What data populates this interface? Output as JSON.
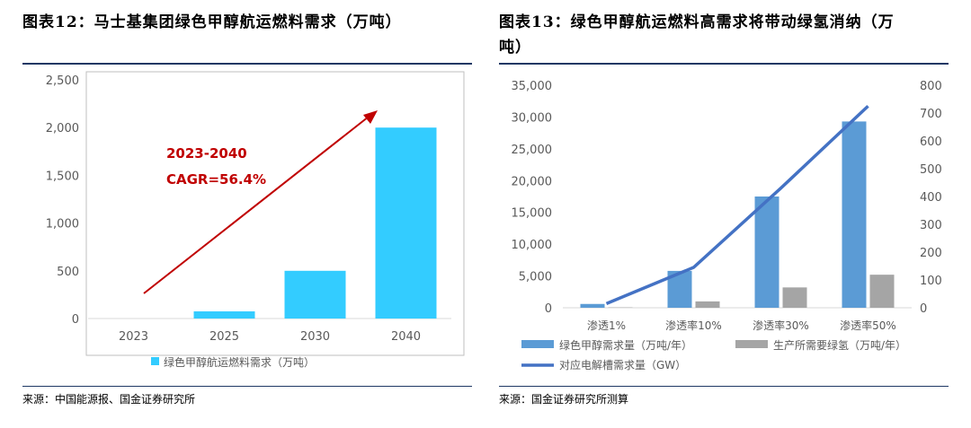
{
  "left": {
    "title": "图表12：马士基集团绿色甲醇航运燃料需求（万吨）",
    "source": "来源：中国能源报、国金证券研究所",
    "annotation_line1": "2023-2040",
    "annotation_line2": "CAGR=56.4%",
    "colors": {
      "bar": "#33ccff",
      "arrow": "#c00000",
      "frame": "#bfbfbf"
    }
  },
  "right": {
    "title_line1": "图表13：绿色甲醇航运燃料高需求将带动绿氢消纳（万",
    "title_line2": "吨）",
    "source": "来源：国金证券研究所测算",
    "colors": {
      "bar1": "#5b9bd5",
      "bar2": "#a5a5a5",
      "line": "#4472c4"
    }
  },
  "chart_data": [
    {
      "type": "bar",
      "categories": [
        "2023",
        "2025",
        "2030",
        "2040"
      ],
      "series": [
        {
          "name": "绿色甲醇航运燃料需求（万吨）",
          "values": [
            0,
            75,
            500,
            2000
          ]
        }
      ],
      "ylim": [
        0,
        2500
      ],
      "yticks": [
        "0",
        "500",
        "1,000",
        "1,500",
        "2,000",
        "2,500"
      ],
      "grid": false,
      "legend": "bottom"
    },
    {
      "type": "bar",
      "categories": [
        "渗透1%",
        "渗透率10%",
        "渗透率30%",
        "渗透率50%"
      ],
      "series": [
        {
          "name": "绿色甲醇需求量（万吨/年）",
          "axis": "left",
          "values": [
            600,
            5800,
            17500,
            29300
          ]
        },
        {
          "name": "生产所需要绿氢（万吨/年）",
          "axis": "left",
          "values": [
            60,
            1000,
            3200,
            5200
          ]
        },
        {
          "name": "对应电解槽需求量（GW）",
          "axis": "right",
          "type": "line",
          "values": [
            15,
            145,
            430,
            725
          ]
        }
      ],
      "ylim": [
        0,
        35000
      ],
      "y2lim": [
        0,
        800
      ],
      "yticks": [
        "0",
        "5,000",
        "10,000",
        "15,000",
        "20,000",
        "25,000",
        "30,000",
        "35,000"
      ],
      "y2ticks": [
        "0",
        "100",
        "200",
        "300",
        "400",
        "500",
        "600",
        "700",
        "800"
      ],
      "grid": false,
      "legend": "bottom"
    }
  ]
}
